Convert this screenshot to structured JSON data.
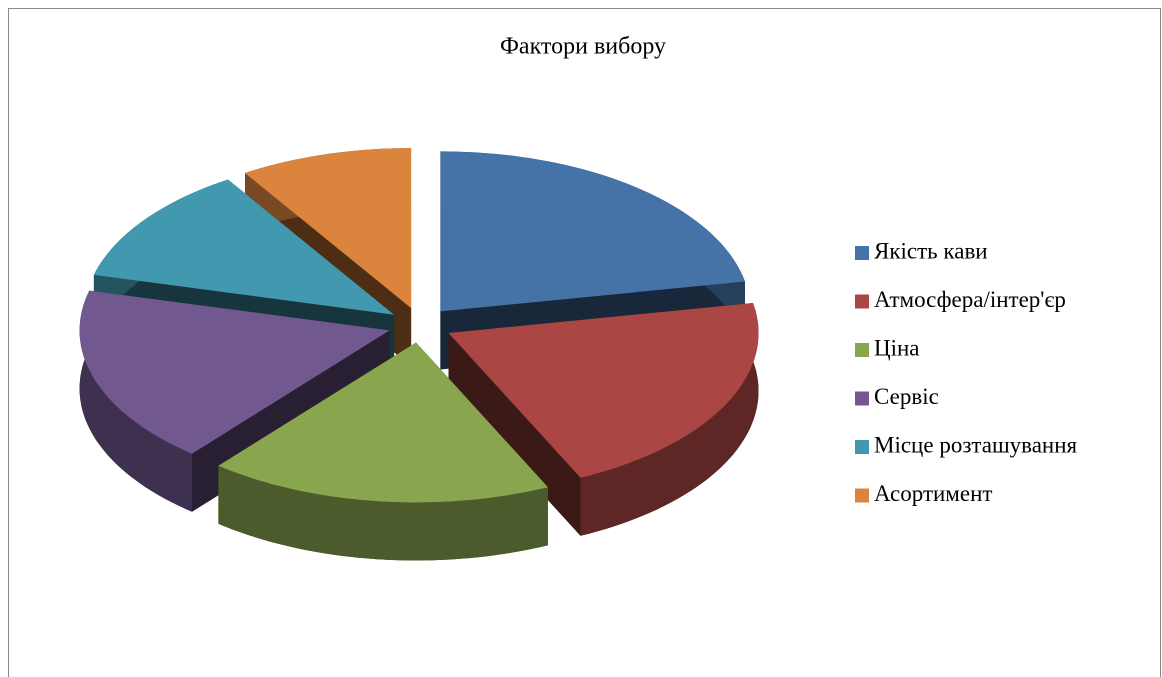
{
  "chart_data": {
    "type": "pie",
    "title": "Фактори вибору",
    "categories": [
      "Якість кави",
      "Атмосфера/інтер'єр",
      "Ціна",
      "Сервіс",
      "Місце розташування",
      "Асортимент"
    ],
    "values": [
      22,
      21,
      18,
      18,
      12,
      9
    ],
    "colors": [
      "#4572a7",
      "#aa4643",
      "#89a54e",
      "#71588f",
      "#4198af",
      "#db843d"
    ],
    "legend": "right"
  }
}
